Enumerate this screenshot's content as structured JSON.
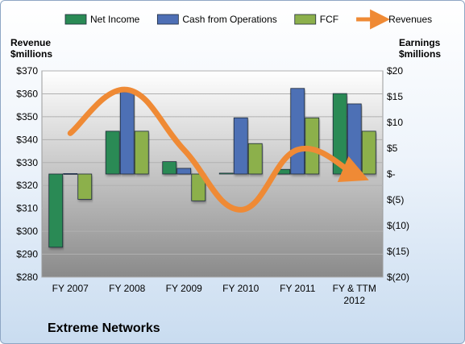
{
  "company": "Extreme Networks",
  "left_axis_title": [
    "Revenue",
    "$millions"
  ],
  "right_axis_title": [
    "Earnings",
    "$millions"
  ],
  "chart_data": {
    "type": "bar",
    "categories": [
      "FY 2007",
      "FY 2008",
      "FY 2009",
      "FY 2010",
      "FY 2011",
      "FY & TTM 2012"
    ],
    "category_lines": [
      [
        "FY 2007"
      ],
      [
        "FY 2008"
      ],
      [
        "FY 2009"
      ],
      [
        "FY 2010"
      ],
      [
        "FY 2011"
      ],
      [
        "FY & TTM",
        "2012"
      ]
    ],
    "series": [
      {
        "name": "Net Income",
        "type": "bar",
        "axis": "right",
        "color": "#2a8a55",
        "values": [
          -14.2,
          8.3,
          2.4,
          0.2,
          0.9,
          15.6
        ]
      },
      {
        "name": "Cash from Operations",
        "type": "bar",
        "axis": "right",
        "color": "#4e6fb5",
        "values": [
          0.1,
          15.9,
          1.1,
          10.9,
          16.6,
          13.6
        ]
      },
      {
        "name": "FCF",
        "type": "bar",
        "axis": "right",
        "color": "#8cb04c",
        "values": [
          -4.9,
          8.3,
          -5.2,
          5.9,
          10.9,
          8.3
        ]
      },
      {
        "name": "Revenues",
        "type": "line",
        "axis": "left",
        "color": "#ef8a35",
        "values": [
          342.8,
          361.8,
          335.6,
          309.4,
          335.6,
          325.0
        ]
      }
    ],
    "left_axis": {
      "min": 280,
      "max": 370,
      "step": 10,
      "ticks": [
        "$280",
        "$290",
        "$300",
        "$310",
        "$320",
        "$330",
        "$340",
        "$350",
        "$360",
        "$370"
      ]
    },
    "right_axis": {
      "min": -20,
      "max": 20,
      "step": 5,
      "ticks": [
        "$(20)",
        "$(15)",
        "$(10)",
        "$(5)",
        "$-",
        "$5",
        "$10",
        "$15",
        "$20"
      ]
    },
    "legend_position": "top",
    "grid": true
  }
}
